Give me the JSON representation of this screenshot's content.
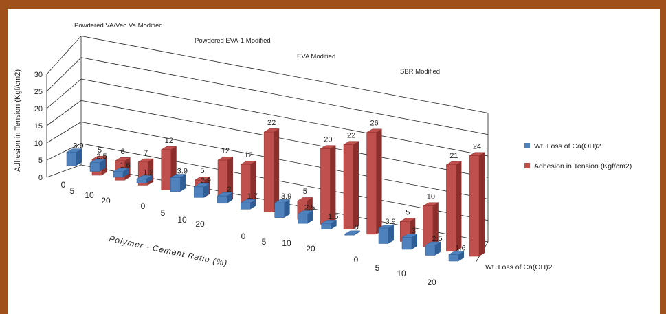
{
  "colors": {
    "frame": "#a0501a",
    "blue": "#4f81bd",
    "blue_dark": "#2f5d96",
    "red": "#c0504d",
    "red_dark": "#8c2f2c",
    "grid": "#222222"
  },
  "chart_data": {
    "type": "bar",
    "subtype": "3d-clustered",
    "ylabel": "Adhesion in Tension (Kgf/cm2)",
    "xlabel": "Polymer - Cement Ratio (%)",
    "ylim": [
      0,
      30
    ],
    "yticks": [
      "0",
      "5",
      "10",
      "15",
      "20",
      "25",
      "30"
    ],
    "depth_axis_label": "Wt. Loss of Ca(OH)2",
    "legend_position": "right",
    "groups": [
      {
        "name": "Powdered  VA/Veo Va Modified",
        "categories": [
          "0",
          "5",
          "10",
          "20"
        ]
      },
      {
        "name": "Powdered  EVA-1 Modified",
        "categories": [
          "0",
          "5",
          "10",
          "20"
        ]
      },
      {
        "name": "EVA Modified",
        "categories": [
          "0",
          "5",
          "10",
          "20"
        ]
      },
      {
        "name": "SBR Modified",
        "categories": [
          "0",
          "5",
          "10",
          "20"
        ]
      }
    ],
    "series": [
      {
        "name": "Wt. Loss of Ca(OH)2",
        "values": [
          3.9,
          2.5,
          1.6,
          1.2,
          3.9,
          2.9,
          2,
          1.7,
          3.9,
          2.5,
          1.5,
          0,
          3.9,
          3,
          2.5,
          1.6
        ],
        "labels": [
          "3.9",
          "2.5",
          "1.6",
          "1.2",
          "3.9",
          "2.9",
          "2",
          "1.7",
          "3.9",
          "2.5",
          "1.5",
          "0",
          "3.9",
          "3",
          "2.5",
          "1.6"
        ]
      },
      {
        "name": "Adhesion in Tension (Kgf/cm2)",
        "values": [
          5,
          6,
          7,
          12,
          5,
          12,
          12,
          22,
          5,
          20,
          22,
          26,
          5,
          10,
          21,
          24
        ],
        "labels": [
          "5",
          "6",
          "7",
          "12",
          "5",
          "12",
          "12",
          "22",
          "5",
          "20",
          "22",
          "26",
          "5",
          "10",
          "21",
          "24"
        ]
      }
    ]
  }
}
